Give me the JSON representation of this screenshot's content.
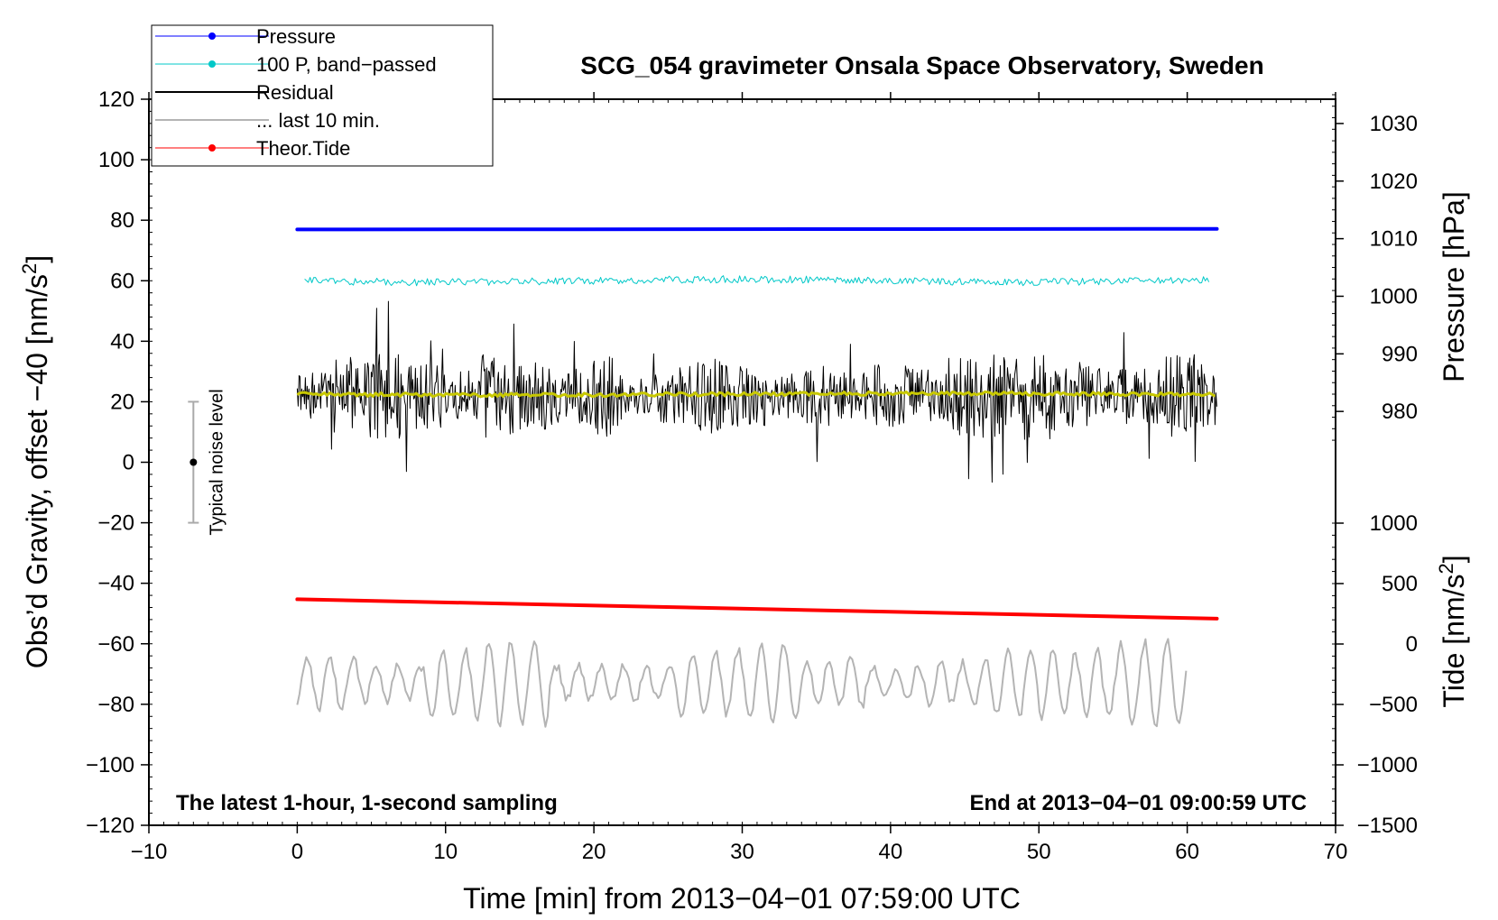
{
  "chart_data": {
    "type": "line",
    "title": "SCG_054 gravimeter Onsala Space Observatory, Sweden",
    "xlabel": "Time [min] from 2013−04−01 07:59:00 UTC",
    "ylabel_left": "Obs’d Gravity, offset −40 [nm/s",
    "ylabel_left_sup": "2",
    "ylabel_left_tail": "]",
    "ylabel_right_pressure": "Pressure [hPa]",
    "ylabel_right_tide": "Tide [nm/s",
    "ylabel_right_tide_sup": "2",
    "ylabel_right_tide_tail": "]",
    "xlim": [
      -10,
      70
    ],
    "ylim": [
      -120,
      120
    ],
    "pressure_lim": [
      970,
      1035
    ],
    "tide_lim": [
      -1500,
      1000
    ],
    "x_ticks": [
      "−10",
      "0",
      "10",
      "20",
      "30",
      "40",
      "50",
      "60",
      "70"
    ],
    "y_ticks": [
      "120",
      "100",
      "80",
      "60",
      "40",
      "20",
      "0",
      "−20",
      "−40",
      "−60",
      "−80",
      "−100",
      "−120"
    ],
    "pressure_ticks": [
      "1030",
      "1020",
      "1010",
      "1000",
      "990",
      "980"
    ],
    "tide_ticks": [
      "1000",
      "500",
      "0",
      "−500",
      "−1000",
      "−1500"
    ],
    "annotation_left": "The latest 1-hour, 1-second sampling",
    "annotation_right": "End at 2013−04−01 09:00:59 UTC",
    "noise_label": "Typical noise level",
    "noise_bar": {
      "x": -7,
      "center": 0,
      "low": -20,
      "high": 20
    },
    "legend": [
      {
        "label": "Pressure",
        "color": "#0000ff",
        "marker": true
      },
      {
        "label": "100 P, band−passed",
        "color": "#00c8c8",
        "marker": true
      },
      {
        "label": "Residual",
        "color": "#000000",
        "marker": false
      },
      {
        "label": "... last 10 min.",
        "color": "#b4b4b4",
        "marker": false
      },
      {
        "label": "Theor.Tide",
        "color": "#ff0000",
        "marker": true
      }
    ],
    "series": [
      {
        "name": "Pressure",
        "color": "#0000ff",
        "axis": "pressure",
        "x": [
          0,
          62
        ],
        "values": [
          1011.6,
          1011.7
        ],
        "width": 4
      },
      {
        "name": "Theor.Tide",
        "color": "#ff0000",
        "axis": "tide",
        "x": [
          0,
          62
        ],
        "values": [
          370,
          210
        ],
        "width": 4
      },
      {
        "name": "100 P, band−passed",
        "color": "#00c8c8",
        "axis": "left",
        "x_range": [
          0.5,
          61.5
        ],
        "center": 60,
        "amplitude": 1.2,
        "width": 1
      },
      {
        "name": "Residual",
        "color": "#000000",
        "axis": "left",
        "x_range": [
          0,
          62
        ],
        "center": 22,
        "amplitude": 10,
        "width": 1
      },
      {
        "name": "Residual smoothed",
        "color": "#c8c800",
        "axis": "left",
        "x_range": [
          0,
          62
        ],
        "center": 22.5,
        "amplitude": 0.6,
        "width": 3
      },
      {
        "name": "... last 10 min.",
        "color": "#b4b4b4",
        "axis": "left",
        "x_range": [
          0,
          60
        ],
        "center": -73,
        "amplitude": 10,
        "width": 2
      }
    ]
  }
}
